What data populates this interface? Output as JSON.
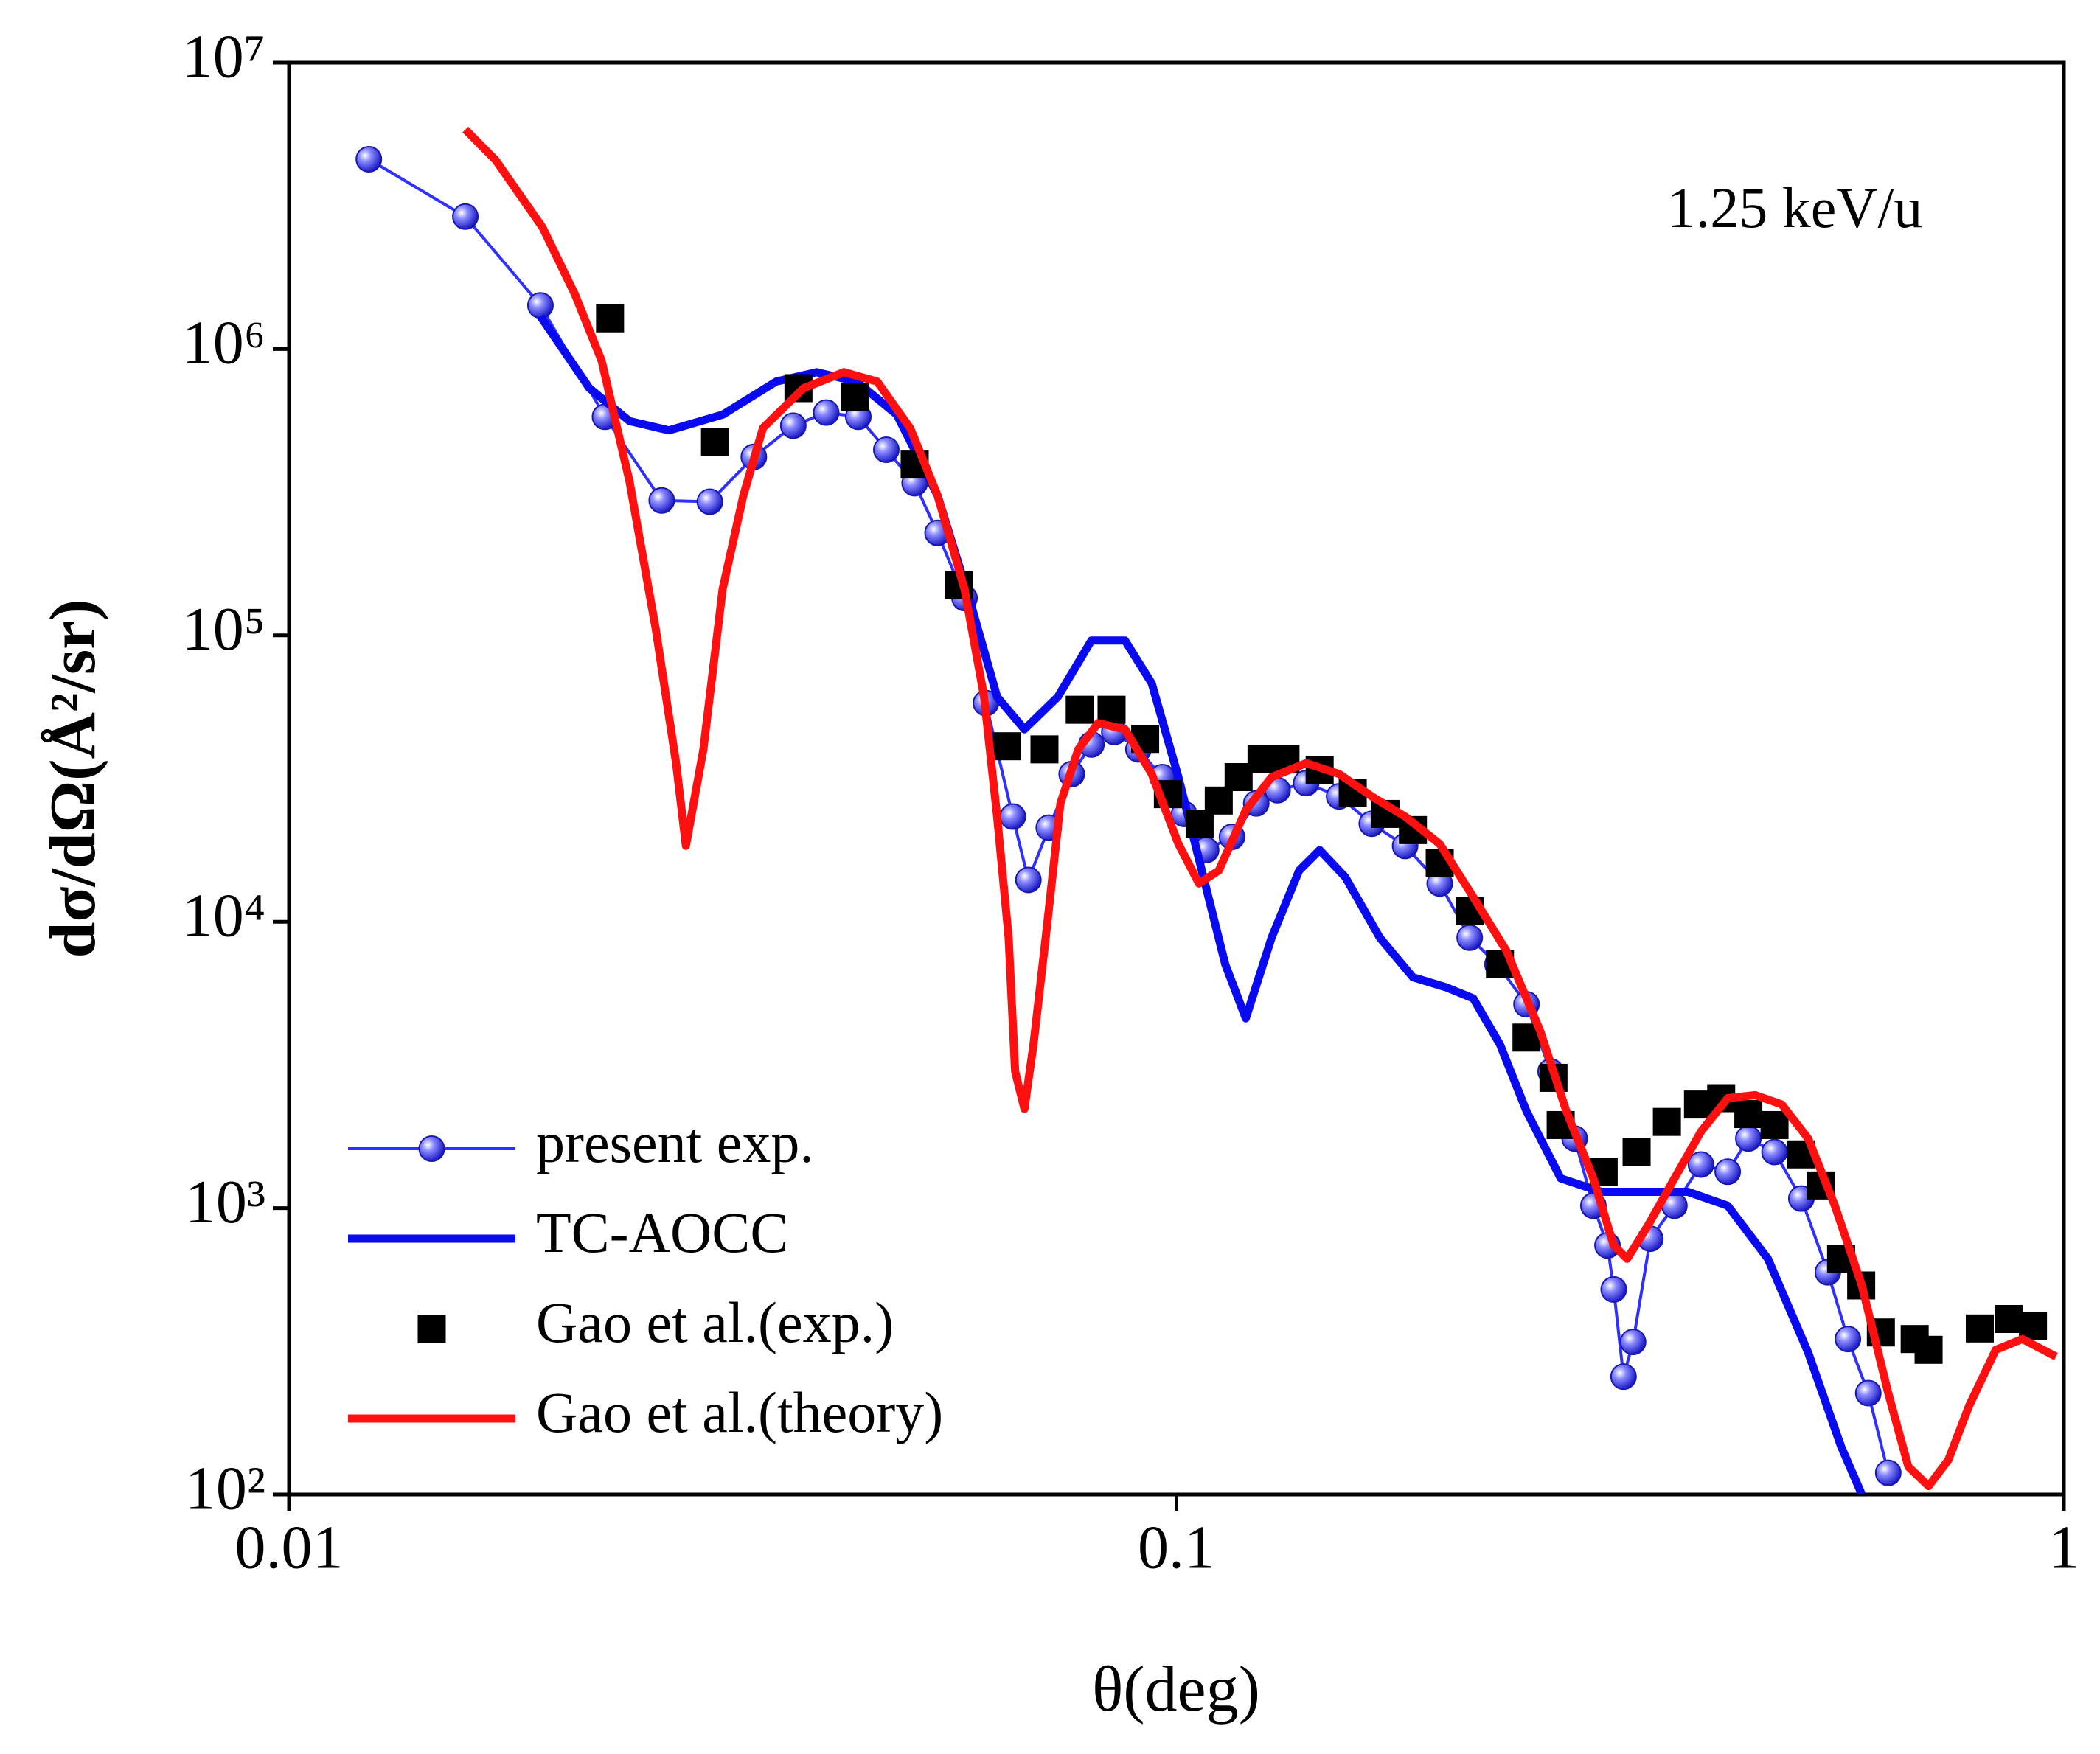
{
  "chart_data": {
    "type": "line",
    "x_label": "θ(deg)",
    "y_label": "dσ/dΩ(Å²/sr)",
    "annotation": "1.25 keV/u",
    "xscale": "log",
    "yscale": "log",
    "xlim": [
      0.01,
      1
    ],
    "ylim": [
      100,
      10000000
    ],
    "xticks": [
      0.01,
      0.1,
      1
    ],
    "yticks": [
      {
        "value": 100,
        "label": "10²"
      },
      {
        "value": 1000,
        "label": "10³"
      },
      {
        "value": 10000,
        "label": "10⁴"
      },
      {
        "value": 100000,
        "label": "10⁵"
      },
      {
        "value": 1000000,
        "label": "10⁶"
      },
      {
        "value": 10000000,
        "label": "10⁷"
      }
    ],
    "legend": "lower left",
    "series": [
      {
        "name": "present exp.",
        "color": "#2f2fff",
        "style": "line-marker",
        "marker": "circle",
        "x": [
          0.0123,
          0.0158,
          0.0192,
          0.0227,
          0.0263,
          0.0298,
          0.0334,
          0.037,
          0.0403,
          0.0438,
          0.0471,
          0.0507,
          0.0538,
          0.0577,
          0.061,
          0.0654,
          0.0681,
          0.0718,
          0.0762,
          0.0802,
          0.0851,
          0.0906,
          0.0964,
          0.102,
          0.108,
          0.1155,
          0.123,
          0.13,
          0.14,
          0.1525,
          0.166,
          0.181,
          0.198,
          0.214,
          0.23,
          0.248,
          0.264,
          0.281,
          0.295,
          0.306,
          0.311,
          0.319,
          0.327,
          0.342,
          0.364,
          0.39,
          0.418,
          0.441,
          0.472,
          0.506,
          0.542,
          0.571,
          0.602,
          0.634
        ],
        "values": [
          4600000,
          2900000,
          1420000,
          580000,
          296000,
          293000,
          420000,
          540000,
          600000,
          580000,
          445000,
          340000,
          228000,
          135000,
          58000,
          23300,
          14000,
          21300,
          32800,
          41600,
          46000,
          40000,
          32000,
          23800,
          17800,
          19800,
          25900,
          28800,
          30500,
          27400,
          22000,
          18400,
          13600,
          8800,
          7100,
          5150,
          3000,
          1750,
          1020,
          741,
          520,
          258,
          341,
          782,
          1020,
          1420,
          1340,
          1750,
          1570,
          1080,
          597,
          349,
          226,
          119
        ]
      },
      {
        "name": "TC-AOCC",
        "color": "#0a0af0",
        "style": "line",
        "x": [
          0.0192,
          0.0218,
          0.0242,
          0.0268,
          0.0308,
          0.0354,
          0.0393,
          0.0436,
          0.0484,
          0.0538,
          0.0586,
          0.0628,
          0.0674,
          0.0735,
          0.0802,
          0.0875,
          0.0938,
          0.1005,
          0.1077,
          0.1135,
          0.1197,
          0.128,
          0.1375,
          0.145,
          0.155,
          0.1695,
          0.1847,
          0.2014,
          0.216,
          0.2315,
          0.248,
          0.271,
          0.301,
          0.334,
          0.377,
          0.418,
          0.464,
          0.515,
          0.561,
          0.592
        ],
        "values": [
          1300000,
          730000,
          560000,
          520000,
          590000,
          770000,
          830000,
          770000,
          590000,
          308000,
          130000,
          61000,
          47000,
          61000,
          96000,
          96000,
          68000,
          32000,
          13600,
          7100,
          4600,
          8800,
          15100,
          17800,
          14300,
          8800,
          6400,
          5900,
          5400,
          3730,
          2180,
          1270,
          1140,
          1140,
          1140,
          1020,
          665,
          313,
          147,
          100
        ]
      },
      {
        "name": "Gao et al.(exp.)",
        "color": "#000000",
        "style": "marker",
        "marker": "square",
        "x": [
          0.023,
          0.0302,
          0.0375,
          0.0434,
          0.0507,
          0.0569,
          0.0644,
          0.071,
          0.0778,
          0.0845,
          0.0922,
          0.0978,
          0.1062,
          0.1116,
          0.1175,
          0.1247,
          0.1327,
          0.145,
          0.158,
          0.172,
          0.1847,
          0.198,
          0.214,
          0.2315,
          0.248,
          0.266,
          0.271,
          0.303,
          0.33,
          0.357,
          0.387,
          0.411,
          0.441,
          0.472,
          0.506,
          0.532,
          0.561,
          0.591,
          0.622,
          0.679,
          0.704,
          0.804,
          0.867,
          0.923
        ],
        "values": [
          1280000,
          474000,
          730000,
          680000,
          395000,
          150000,
          41000,
          40000,
          55000,
          55000,
          43500,
          27900,
          22000,
          26500,
          32000,
          37000,
          37000,
          33900,
          28200,
          23800,
          20900,
          16000,
          10900,
          7100,
          3940,
          2850,
          1950,
          1340,
          1570,
          2000,
          2300,
          2420,
          2130,
          1950,
          1540,
          1200,
          665,
          537,
          368,
          349,
          320,
          380,
          410,
          388
        ]
      },
      {
        "name": "Gao et al.(theory)",
        "color": "#ff1010",
        "style": "line",
        "x": [
          0.0158,
          0.0171,
          0.0193,
          0.021,
          0.0225,
          0.0242,
          0.0259,
          0.0273,
          0.028,
          0.0293,
          0.0308,
          0.0325,
          0.0342,
          0.038,
          0.0422,
          0.046,
          0.0501,
          0.0538,
          0.0577,
          0.0607,
          0.0628,
          0.0647,
          0.0658,
          0.0674,
          0.069,
          0.0715,
          0.074,
          0.0775,
          0.0816,
          0.0875,
          0.0938,
          0.1005,
          0.106,
          0.1116,
          0.1197,
          0.128,
          0.14,
          0.1525,
          0.166,
          0.181,
          0.198,
          0.216,
          0.2355,
          0.257,
          0.275,
          0.295,
          0.311,
          0.322,
          0.34,
          0.364,
          0.39,
          0.418,
          0.449,
          0.481,
          0.515,
          0.552,
          0.592,
          0.634,
          0.668,
          0.704,
          0.741,
          0.782,
          0.838,
          0.898,
          0.98
        ],
        "values": [
          5840000,
          4560000,
          2660000,
          1550000,
          910000,
          343000,
          105000,
          35800,
          18400,
          40000,
          145000,
          308000,
          530000,
          730000,
          830000,
          770000,
          530000,
          308000,
          145000,
          61000,
          23300,
          8800,
          3000,
          2220,
          3730,
          9800,
          25900,
          40000,
          49400,
          47000,
          32800,
          18700,
          13600,
          15100,
          24500,
          32000,
          35800,
          32800,
          27400,
          23300,
          18700,
          12200,
          7900,
          4150,
          2180,
          1270,
          741,
          665,
          871,
          1270,
          1850,
          2420,
          2480,
          2300,
          1750,
          1020,
          537,
          226,
          125,
          107,
          132,
          204,
          320,
          349,
          303
        ]
      }
    ]
  }
}
